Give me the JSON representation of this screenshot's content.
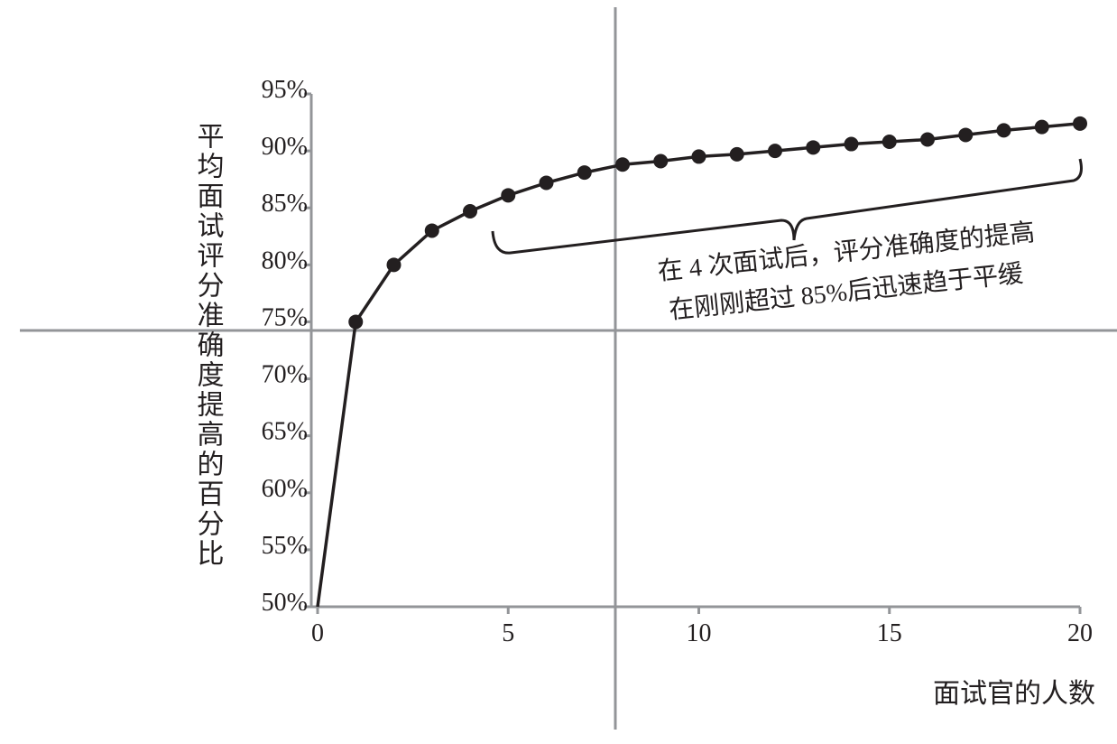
{
  "chart_data": {
    "type": "line",
    "x_label": "面试官的人数",
    "y_label": "平均面试评分准确度提高的百分比",
    "annotation": [
      "在 4 次面试后，评分准确度的提高",
      "在刚刚超过 85%后迅速趋于平缓"
    ],
    "x": [
      0,
      1,
      2,
      3,
      4,
      5,
      6,
      7,
      8,
      9,
      10,
      11,
      12,
      13,
      14,
      15,
      16,
      17,
      18,
      19,
      20
    ],
    "series": [
      {
        "color": "#231f20",
        "values": [
          50,
          75,
          80,
          83,
          84.7,
          86.1,
          87.2,
          88.1,
          88.8,
          89.1,
          89.5,
          89.7,
          90,
          90.3,
          90.6,
          90.8,
          91,
          91.4,
          91.8,
          92.1,
          92.4
        ]
      }
    ],
    "xlim": [
      0,
      20
    ],
    "xticks": [
      0,
      5,
      10,
      15,
      20
    ],
    "ylim": [
      50,
      95
    ],
    "yticks": [
      {
        "value": 50,
        "label": "50%"
      },
      {
        "value": 55,
        "label": "55%"
      },
      {
        "value": 60,
        "label": "60%"
      },
      {
        "value": 65,
        "label": "65%"
      },
      {
        "value": 70,
        "label": "70%"
      },
      {
        "value": 75,
        "label": "75%"
      },
      {
        "value": 80,
        "label": "80%"
      },
      {
        "value": 85,
        "label": "85%"
      },
      {
        "value": 90,
        "label": "90%"
      },
      {
        "value": 95,
        "label": "95%"
      }
    ]
  }
}
